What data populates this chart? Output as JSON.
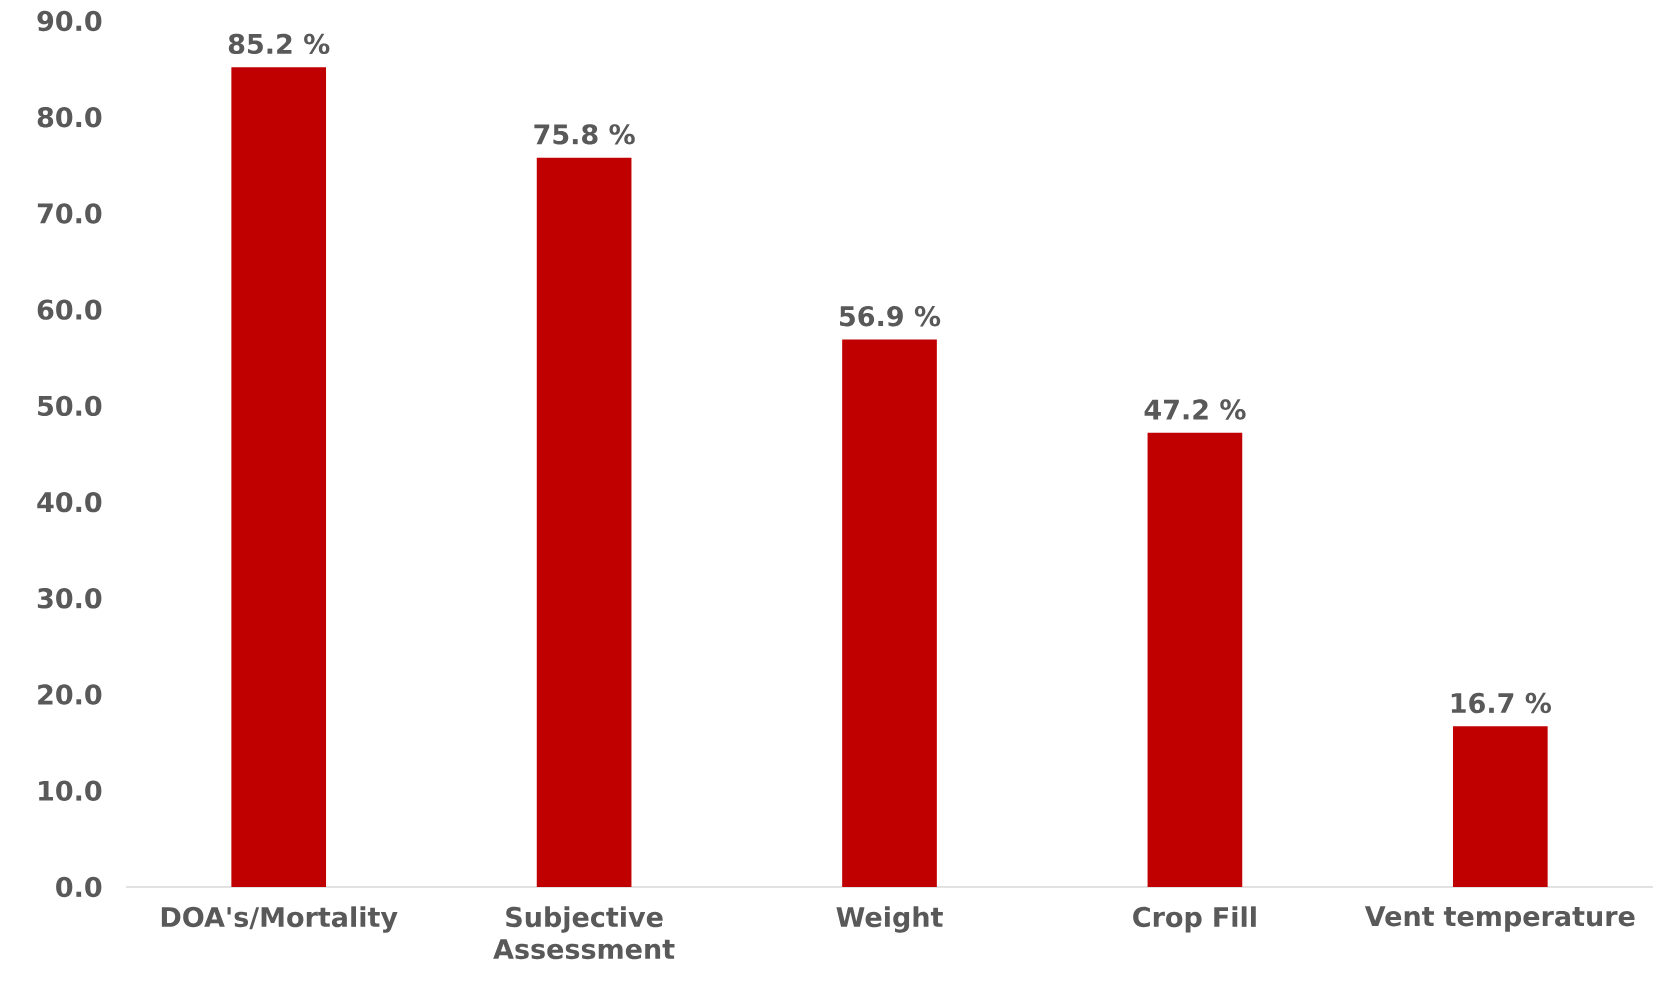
{
  "chart_data": {
    "type": "bar",
    "categories": [
      "DOA's/Mortality",
      "Subjective Assessment",
      "Weight",
      "Crop Fill",
      "Vent temperature"
    ],
    "values": [
      85.2,
      75.8,
      56.9,
      47.2,
      16.7
    ],
    "value_labels": [
      "85.2 %",
      "75.8 %",
      "56.9 %",
      "47.2 %",
      "16.7 %"
    ],
    "color": "#c00000",
    "ylim": [
      0,
      90
    ],
    "yticks": [
      {
        "value": 0,
        "label": "0.0"
      },
      {
        "value": 10,
        "label": "10.0"
      },
      {
        "value": 20,
        "label": "20.0"
      },
      {
        "value": 30,
        "label": "30.0"
      },
      {
        "value": 40,
        "label": "40.0"
      },
      {
        "value": 50,
        "label": "50.0"
      },
      {
        "value": 60,
        "label": "60.0"
      },
      {
        "value": 70,
        "label": "70.0"
      },
      {
        "value": 80,
        "label": "80.0"
      },
      {
        "value": 90,
        "label": "90.0"
      }
    ]
  }
}
